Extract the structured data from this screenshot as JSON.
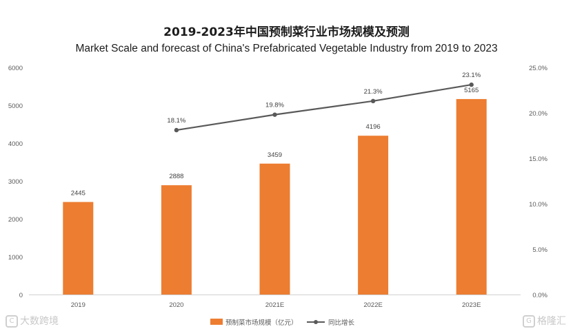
{
  "chart_data": {
    "type": "bar",
    "title": "2019-2023年中国预制菜行业市场规模及预测",
    "subtitle": "Market Scale and forecast of China's Prefabricated Vegetable Industry from 2019 to 2023",
    "categories": [
      "2019",
      "2020",
      "2021E",
      "2022E",
      "2023E"
    ],
    "series": [
      {
        "name": "预制菜市场规模（亿元）",
        "type": "bar",
        "axis": "left",
        "color": "#ed7d31",
        "values": [
          2445,
          2888,
          3459,
          4196,
          5165
        ],
        "labels": [
          "2445",
          "2888",
          "3459",
          "4196",
          "5165"
        ]
      },
      {
        "name": "同比增长",
        "type": "line",
        "axis": "right",
        "color": "#595959",
        "values": [
          null,
          18.1,
          19.8,
          21.3,
          23.1
        ],
        "labels": [
          "",
          "18.1%",
          "19.8%",
          "21.3%",
          "23.1%"
        ]
      }
    ],
    "ylim": [
      0,
      6000
    ],
    "yticks": [
      "0",
      "1000",
      "2000",
      "3000",
      "4000",
      "5000",
      "6000"
    ],
    "y2lim": [
      0,
      25
    ],
    "y2ticks": [
      "0.0%",
      "5.0%",
      "10.0%",
      "15.0%",
      "20.0%",
      "25.0%"
    ],
    "legend": "bottom-center",
    "grid": false
  },
  "watermarks": {
    "left": {
      "logo": "C",
      "text": "大数跨境"
    },
    "right": {
      "logo": "G",
      "text": "格隆汇"
    }
  }
}
